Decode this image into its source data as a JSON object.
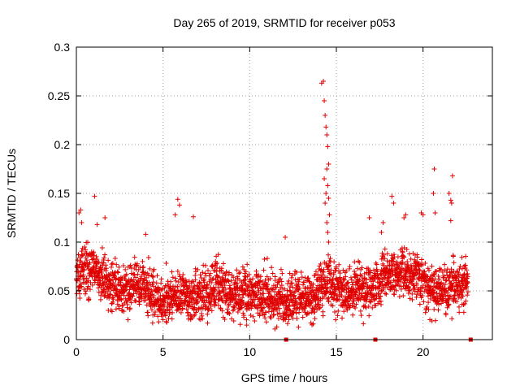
{
  "chart_data": {
    "type": "scatter",
    "title": "Day 265 of 2019, SRMTID for receiver p053",
    "xlabel": "GPS time / hours",
    "ylabel": "SRMTID / TECUs",
    "xlim": [
      0,
      24
    ],
    "ylim": [
      0,
      0.3
    ],
    "xticks": [
      0,
      5,
      10,
      15,
      20
    ],
    "xtick_labels": [
      "0",
      "5",
      "10",
      "15",
      "20"
    ],
    "yticks": [
      0,
      0.05,
      0.1,
      0.15,
      0.2,
      0.25,
      0.3
    ],
    "ytick_labels": [
      "0",
      "0.05",
      "0.1",
      "0.15",
      "0.2",
      "0.25",
      "0.3"
    ],
    "grid": true,
    "marker": "+",
    "series_color": "#e00000",
    "series": [
      {
        "name": "SRMTID",
        "baseline": [
          [
            0.0,
            0.07
          ],
          [
            0.5,
            0.072
          ],
          [
            1.0,
            0.072
          ],
          [
            1.5,
            0.065
          ],
          [
            2.0,
            0.055
          ],
          [
            2.5,
            0.052
          ],
          [
            3.0,
            0.05
          ],
          [
            3.5,
            0.06
          ],
          [
            4.0,
            0.055
          ],
          [
            4.5,
            0.042
          ],
          [
            5.0,
            0.04
          ],
          [
            5.5,
            0.045
          ],
          [
            6.0,
            0.048
          ],
          [
            6.5,
            0.042
          ],
          [
            7.0,
            0.045
          ],
          [
            7.5,
            0.048
          ],
          [
            8.0,
            0.055
          ],
          [
            8.5,
            0.05
          ],
          [
            9.0,
            0.046
          ],
          [
            9.5,
            0.048
          ],
          [
            10.0,
            0.05
          ],
          [
            10.5,
            0.046
          ],
          [
            11.0,
            0.045
          ],
          [
            11.5,
            0.042
          ],
          [
            12.0,
            0.04
          ],
          [
            12.5,
            0.042
          ],
          [
            13.0,
            0.045
          ],
          [
            13.5,
            0.04
          ],
          [
            14.0,
            0.05
          ],
          [
            14.5,
            0.06
          ],
          [
            15.0,
            0.05
          ],
          [
            15.5,
            0.048
          ],
          [
            16.0,
            0.05
          ],
          [
            16.5,
            0.055
          ],
          [
            17.0,
            0.05
          ],
          [
            17.5,
            0.058
          ],
          [
            18.0,
            0.065
          ],
          [
            18.5,
            0.068
          ],
          [
            19.0,
            0.07
          ],
          [
            19.5,
            0.065
          ],
          [
            20.0,
            0.06
          ],
          [
            20.5,
            0.055
          ],
          [
            21.0,
            0.05
          ],
          [
            21.5,
            0.052
          ],
          [
            22.0,
            0.055
          ],
          [
            22.5,
            0.06
          ]
        ],
        "spread": 0.022,
        "x_range": [
          0.0,
          22.6
        ],
        "highlighted_points": [
          [
            0.15,
            0.13
          ],
          [
            0.25,
            0.133
          ],
          [
            0.3,
            0.12
          ],
          [
            1.05,
            0.147
          ],
          [
            1.2,
            0.118
          ],
          [
            1.65,
            0.125
          ],
          [
            4.0,
            0.108
          ],
          [
            5.7,
            0.128
          ],
          [
            5.85,
            0.144
          ],
          [
            5.95,
            0.138
          ],
          [
            6.75,
            0.126
          ],
          [
            12.05,
            0.105
          ],
          [
            14.15,
            0.263
          ],
          [
            14.25,
            0.265
          ],
          [
            14.3,
            0.245
          ],
          [
            14.35,
            0.23
          ],
          [
            14.4,
            0.218
          ],
          [
            14.45,
            0.21
          ],
          [
            14.5,
            0.198
          ],
          [
            14.55,
            0.18
          ],
          [
            14.45,
            0.175
          ],
          [
            14.3,
            0.165
          ],
          [
            14.5,
            0.158
          ],
          [
            14.4,
            0.15
          ],
          [
            14.55,
            0.145
          ],
          [
            14.35,
            0.14
          ],
          [
            14.6,
            0.128
          ],
          [
            14.45,
            0.12
          ],
          [
            14.5,
            0.11
          ],
          [
            14.55,
            0.1
          ],
          [
            16.9,
            0.125
          ],
          [
            17.6,
            0.11
          ],
          [
            17.7,
            0.12
          ],
          [
            18.2,
            0.147
          ],
          [
            18.3,
            0.14
          ],
          [
            18.9,
            0.125
          ],
          [
            19.0,
            0.128
          ],
          [
            19.9,
            0.13
          ],
          [
            20.0,
            0.128
          ],
          [
            20.65,
            0.175
          ],
          [
            20.6,
            0.15
          ],
          [
            20.7,
            0.13
          ],
          [
            21.5,
            0.15
          ],
          [
            21.6,
            0.143
          ],
          [
            21.7,
            0.168
          ],
          [
            21.65,
            0.14
          ],
          [
            21.6,
            0.122
          ]
        ]
      }
    ],
    "gap_markers_x": [
      12.1,
      17.25,
      22.75
    ]
  }
}
